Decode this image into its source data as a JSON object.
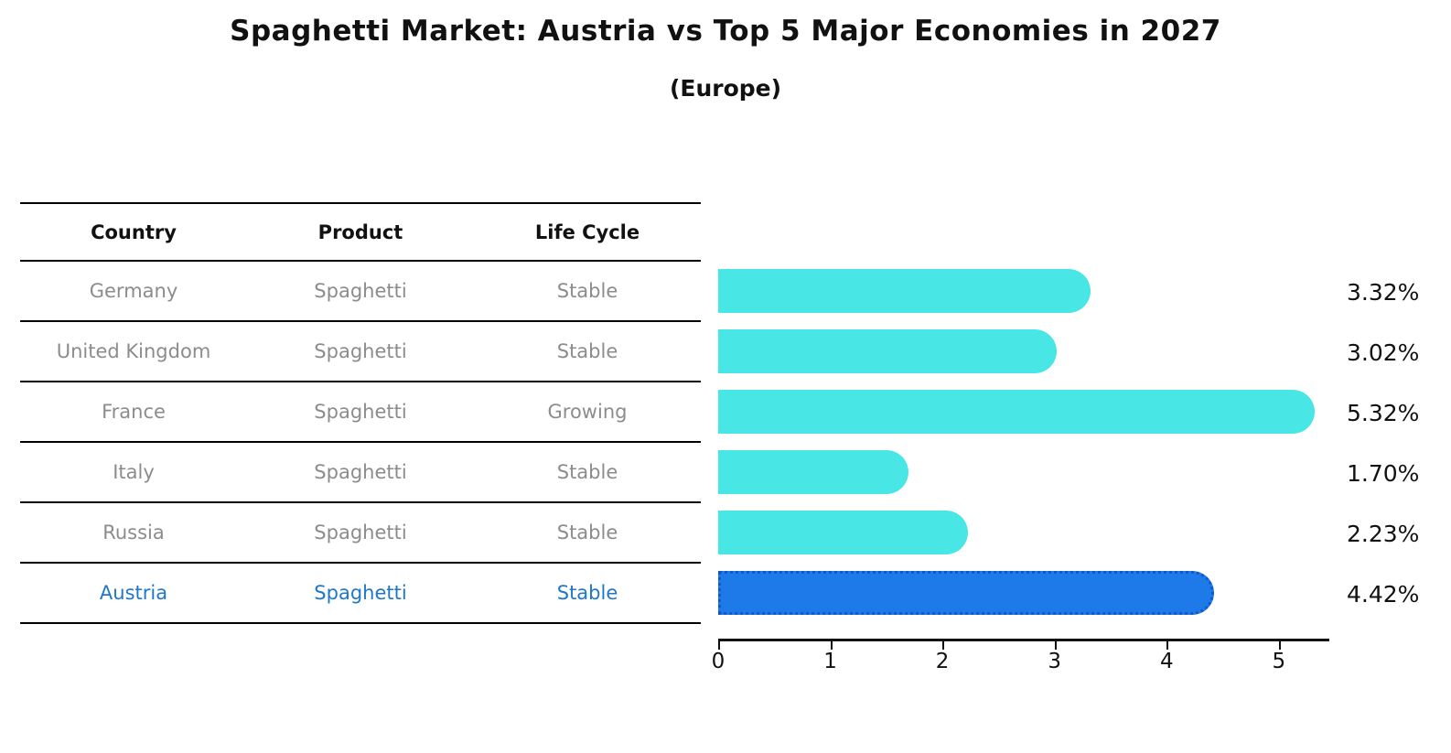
{
  "title": "Spaghetti Market: Austria vs Top 5 Major Economies in 2027",
  "subtitle": "(Europe)",
  "table": {
    "headers": [
      "Country",
      "Product",
      "Life Cycle"
    ]
  },
  "chart_data": {
    "type": "bar",
    "orientation": "horizontal",
    "title": "Spaghetti Market: Austria vs Top 5 Major Economies in 2027",
    "subtitle": "(Europe)",
    "categories": [
      "Germany",
      "United Kingdom",
      "France",
      "Italy",
      "Russia",
      "Austria"
    ],
    "values": [
      3.32,
      3.02,
      5.32,
      1.7,
      2.23,
      4.42
    ],
    "value_labels": [
      "3.32%",
      "3.02%",
      "5.32%",
      "1.70%",
      "2.23%",
      "4.42%"
    ],
    "rows": [
      {
        "country": "Germany",
        "product": "Spaghetti",
        "life_cycle": "Stable",
        "value": 3.32,
        "label": "3.32%",
        "highlight": false
      },
      {
        "country": "United Kingdom",
        "product": "Spaghetti",
        "life_cycle": "Stable",
        "value": 3.02,
        "label": "3.02%",
        "highlight": false
      },
      {
        "country": "France",
        "product": "Spaghetti",
        "life_cycle": "Growing",
        "value": 5.32,
        "label": "5.32%",
        "highlight": false
      },
      {
        "country": "Italy",
        "product": "Spaghetti",
        "life_cycle": "Stable",
        "value": 1.7,
        "label": "1.70%",
        "highlight": false
      },
      {
        "country": "Russia",
        "product": "Spaghetti",
        "life_cycle": "Stable",
        "value": 2.23,
        "label": "2.23%",
        "highlight": false
      },
      {
        "country": "Austria",
        "product": "Spaghetti",
        "life_cycle": "Stable",
        "value": 4.42,
        "label": "4.42%",
        "highlight": true
      }
    ],
    "x_ticks": [
      0,
      1,
      2,
      3,
      4,
      5
    ],
    "xlim": [
      0,
      5.45
    ],
    "grid": false,
    "legend": null,
    "colors": {
      "bar": "#48e6e4",
      "highlight_bar": "#1e7ae8",
      "highlight_border": "#1159c9",
      "highlight_text": "#1f77c9",
      "row_text": "#8c8c8c",
      "axis": "#111111"
    }
  }
}
